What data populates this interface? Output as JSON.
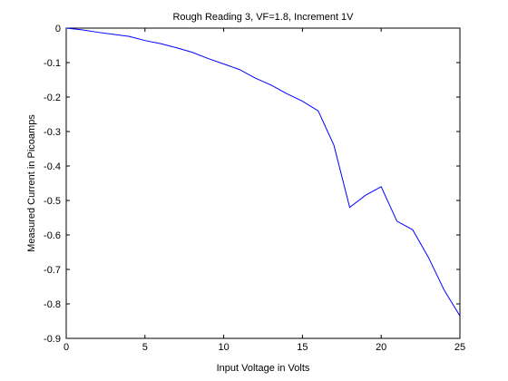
{
  "chart_data": {
    "type": "line",
    "title": "Rough Reading 3, VF=1.8, Increment 1V",
    "xlabel": "Input Voltage in Volts",
    "ylabel": "Measured Current in Picoamps",
    "xlim": [
      0,
      25
    ],
    "ylim": [
      -0.9,
      0
    ],
    "x_ticks": [
      "0",
      "5",
      "10",
      "15",
      "20",
      "25"
    ],
    "y_ticks": [
      "0",
      "-0.1",
      "-0.2",
      "-0.3",
      "-0.4",
      "-0.5",
      "-0.6",
      "-0.7",
      "-0.8",
      "-0.9"
    ],
    "grid": false,
    "series": [
      {
        "color": "#0000ff",
        "x": [
          0,
          1,
          2,
          3,
          4,
          5,
          6,
          7,
          8,
          9,
          10,
          11,
          12,
          13,
          14,
          15,
          16,
          17,
          18,
          19,
          20,
          21,
          22,
          23,
          24,
          25
        ],
        "y": [
          0,
          -0.005,
          -0.012,
          -0.018,
          -0.024,
          -0.036,
          -0.045,
          -0.057,
          -0.07,
          -0.088,
          -0.104,
          -0.12,
          -0.145,
          -0.165,
          -0.19,
          -0.212,
          -0.24,
          -0.34,
          -0.52,
          -0.485,
          -0.46,
          -0.56,
          -0.585,
          -0.665,
          -0.76,
          -0.835
        ]
      }
    ]
  }
}
